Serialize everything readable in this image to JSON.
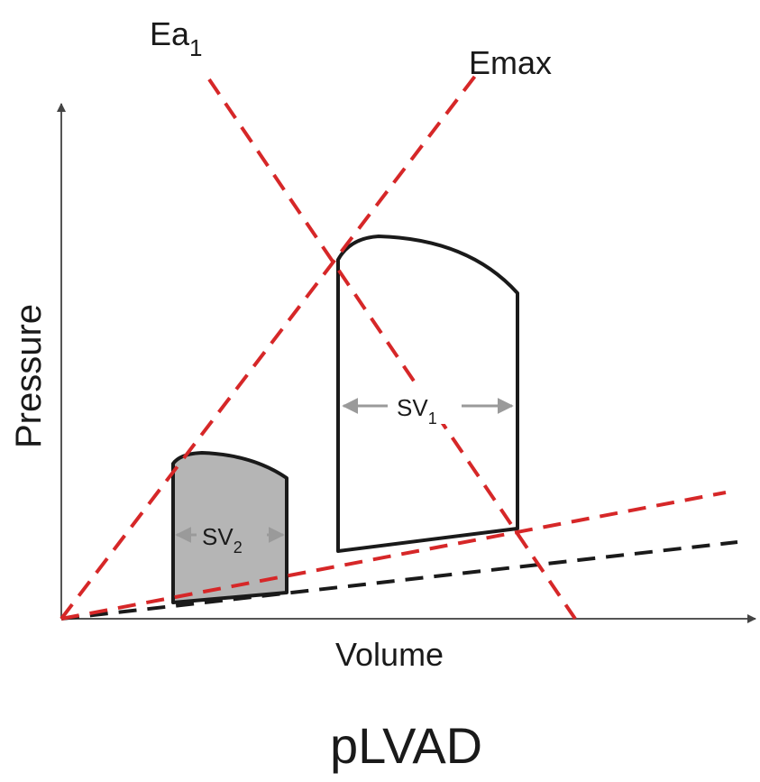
{
  "diagram": {
    "title": "pLVAD",
    "axes": {
      "x_label": "Volume",
      "y_label": "Pressure"
    },
    "lines": [
      {
        "id": "ea1",
        "label": "Ea",
        "label_sub": "1",
        "style": "dashed",
        "color": "#d62728"
      },
      {
        "id": "emax",
        "label": "Emax",
        "style": "dashed",
        "color": "#d62728"
      },
      {
        "id": "edpvr_red",
        "label": "",
        "style": "dashed",
        "color": "#d62728"
      },
      {
        "id": "edpvr_black",
        "label": "",
        "style": "dashed",
        "color": "#1a1a1a"
      }
    ],
    "loops": [
      {
        "id": "loop1",
        "label": "SV",
        "label_sub": "1",
        "fill": "#ffffff"
      },
      {
        "id": "loop2",
        "label": "SV",
        "label_sub": "2",
        "fill": "#b5b5b5"
      }
    ],
    "colors": {
      "red_dashed": "#d62728",
      "black": "#1a1a1a",
      "arrow_gray": "#9a9a9a"
    }
  }
}
